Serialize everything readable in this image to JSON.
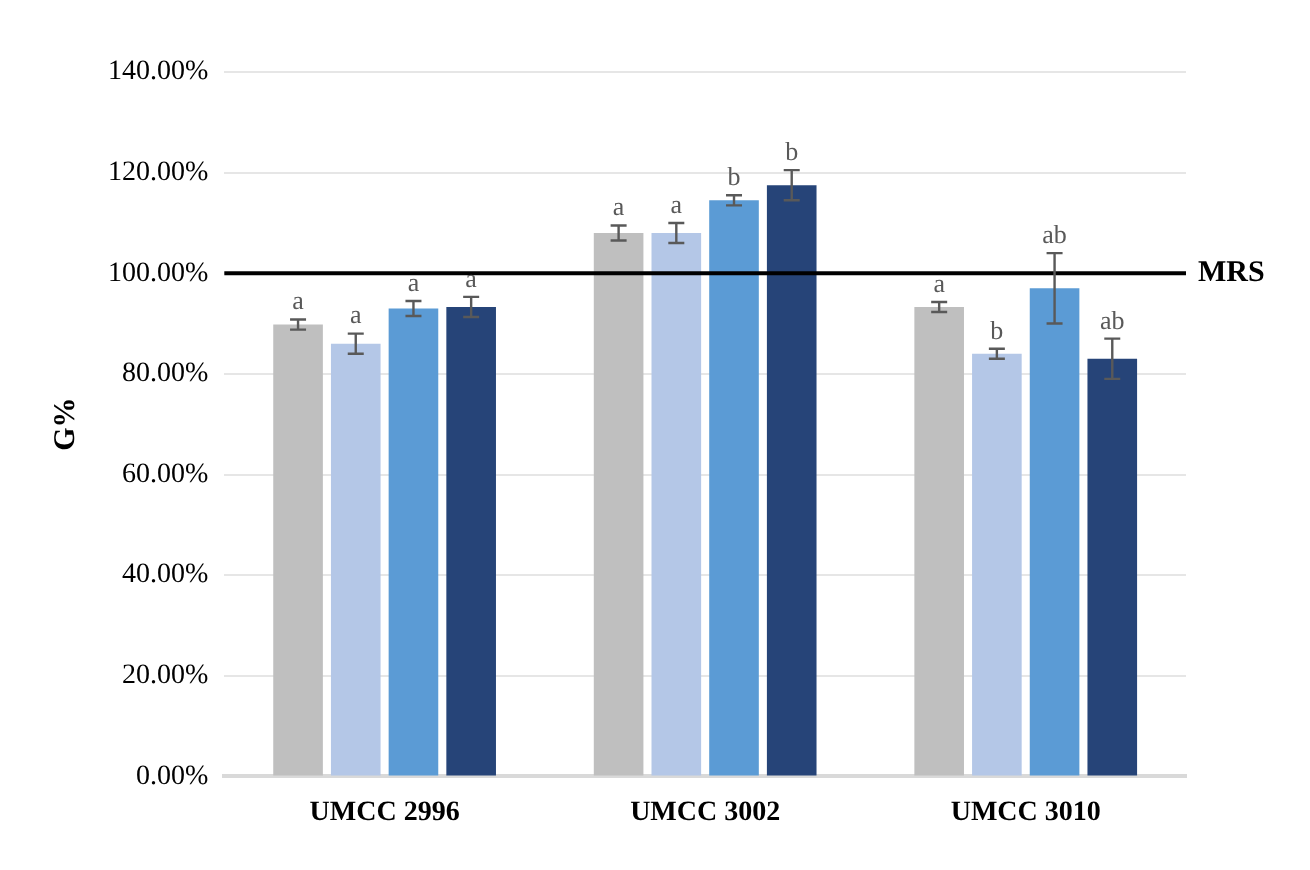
{
  "chart_data": {
    "type": "bar",
    "ylabel": "G%",
    "categories": [
      "UMCC 2996",
      "UMCC 3002",
      "UMCC 3010"
    ],
    "series": [
      {
        "color": "#bfbfbf",
        "values": [
          89.8,
          108,
          93.3
        ],
        "errors": [
          1,
          1.5,
          1
        ],
        "value_labels": [
          "a",
          "a",
          "a"
        ]
      },
      {
        "color": "#b4c7e7",
        "values": [
          86,
          108,
          84
        ],
        "errors": [
          2,
          2,
          1
        ],
        "value_labels": [
          "a",
          "a",
          "b"
        ]
      },
      {
        "color": "#5b9bd5",
        "values": [
          93,
          114.5,
          97
        ],
        "errors": [
          1.5,
          1,
          7
        ],
        "value_labels": [
          "a",
          "b",
          "ab"
        ]
      },
      {
        "color": "#264478",
        "values": [
          93.3,
          117.5,
          83
        ],
        "errors": [
          2,
          3,
          4
        ],
        "value_labels": [
          "a",
          "b",
          "ab"
        ]
      }
    ],
    "ylim": [
      0,
      140
    ],
    "yticks": [
      {
        "value": 0,
        "label": "0.00%"
      },
      {
        "value": 20,
        "label": "20.00%"
      },
      {
        "value": 40,
        "label": "40.00%"
      },
      {
        "value": 60,
        "label": "60.00%"
      },
      {
        "value": 80,
        "label": "80.00%"
      },
      {
        "value": 100,
        "label": "100.00%"
      },
      {
        "value": 120,
        "label": "120.00%"
      },
      {
        "value": 140,
        "label": "140.00%"
      }
    ],
    "ref_lines": [
      {
        "axis": "y",
        "value": 100,
        "label": "MRS",
        "color": "#000000"
      }
    ],
    "grid": "y",
    "legend": false
  }
}
